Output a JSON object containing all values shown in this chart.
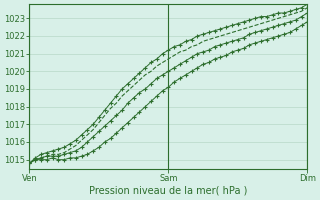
{
  "title": "",
  "xlabel": "Pression niveau de la mer( hPa )",
  "ylabel": "",
  "background_color": "#d8f0e8",
  "grid_color": "#b8d8c8",
  "line_color": "#2d6e2d",
  "xlim": [
    0,
    48
  ],
  "ylim": [
    1014.5,
    1023.8
  ],
  "yticks": [
    1015,
    1016,
    1017,
    1018,
    1019,
    1020,
    1021,
    1022,
    1023
  ],
  "xtick_labels": [
    "Ven",
    "Sam",
    "Dim"
  ],
  "xtick_positions": [
    0,
    24,
    48
  ],
  "series": {
    "min": [
      1014.8,
      1015.0,
      1015.0,
      1015.0,
      1015.1,
      1015.0,
      1015.0,
      1015.1,
      1015.1,
      1015.2,
      1015.3,
      1015.5,
      1015.7,
      1016.0,
      1016.2,
      1016.5,
      1016.8,
      1017.1,
      1017.4,
      1017.7,
      1018.0,
      1018.3,
      1018.6,
      1018.9,
      1019.1,
      1019.4,
      1019.6,
      1019.8,
      1020.0,
      1020.2,
      1020.4,
      1020.5,
      1020.7,
      1020.8,
      1020.9,
      1021.1,
      1021.2,
      1021.3,
      1021.5,
      1021.6,
      1021.7,
      1021.8,
      1021.9,
      1022.0,
      1022.1,
      1022.2,
      1022.4,
      1022.6,
      1022.8
    ],
    "max": [
      1014.8,
      1015.1,
      1015.3,
      1015.4,
      1015.5,
      1015.6,
      1015.7,
      1015.9,
      1016.1,
      1016.4,
      1016.7,
      1017.0,
      1017.4,
      1017.8,
      1018.2,
      1018.6,
      1019.0,
      1019.3,
      1019.6,
      1019.9,
      1020.2,
      1020.5,
      1020.7,
      1021.0,
      1021.2,
      1021.4,
      1021.5,
      1021.7,
      1021.8,
      1022.0,
      1022.1,
      1022.2,
      1022.3,
      1022.4,
      1022.5,
      1022.6,
      1022.7,
      1022.8,
      1022.9,
      1023.0,
      1023.1,
      1023.1,
      1023.2,
      1023.3,
      1023.3,
      1023.4,
      1023.5,
      1023.6,
      1023.8
    ],
    "mean": [
      1014.8,
      1015.0,
      1015.1,
      1015.2,
      1015.2,
      1015.2,
      1015.3,
      1015.4,
      1015.5,
      1015.7,
      1016.0,
      1016.3,
      1016.6,
      1016.9,
      1017.2,
      1017.5,
      1017.8,
      1018.2,
      1018.5,
      1018.8,
      1019.0,
      1019.3,
      1019.6,
      1019.8,
      1020.0,
      1020.2,
      1020.4,
      1020.6,
      1020.8,
      1021.0,
      1021.1,
      1021.2,
      1021.4,
      1021.5,
      1021.6,
      1021.7,
      1021.8,
      1021.9,
      1022.1,
      1022.2,
      1022.3,
      1022.4,
      1022.5,
      1022.6,
      1022.7,
      1022.8,
      1022.9,
      1023.1,
      1023.3
    ],
    "ctrl": [
      1014.8,
      1015.0,
      1015.1,
      1015.2,
      1015.3,
      1015.3,
      1015.4,
      1015.6,
      1015.8,
      1016.1,
      1016.4,
      1016.7,
      1017.1,
      1017.5,
      1017.9,
      1018.2,
      1018.6,
      1018.9,
      1019.2,
      1019.5,
      1019.8,
      1020.0,
      1020.3,
      1020.5,
      1020.7,
      1020.9,
      1021.1,
      1021.2,
      1021.4,
      1021.5,
      1021.7,
      1021.8,
      1021.9,
      1022.0,
      1022.1,
      1022.2,
      1022.3,
      1022.4,
      1022.5,
      1022.6,
      1022.7,
      1022.8,
      1022.9,
      1023.0,
      1023.1,
      1023.2,
      1023.3,
      1023.4,
      1023.6
    ]
  }
}
